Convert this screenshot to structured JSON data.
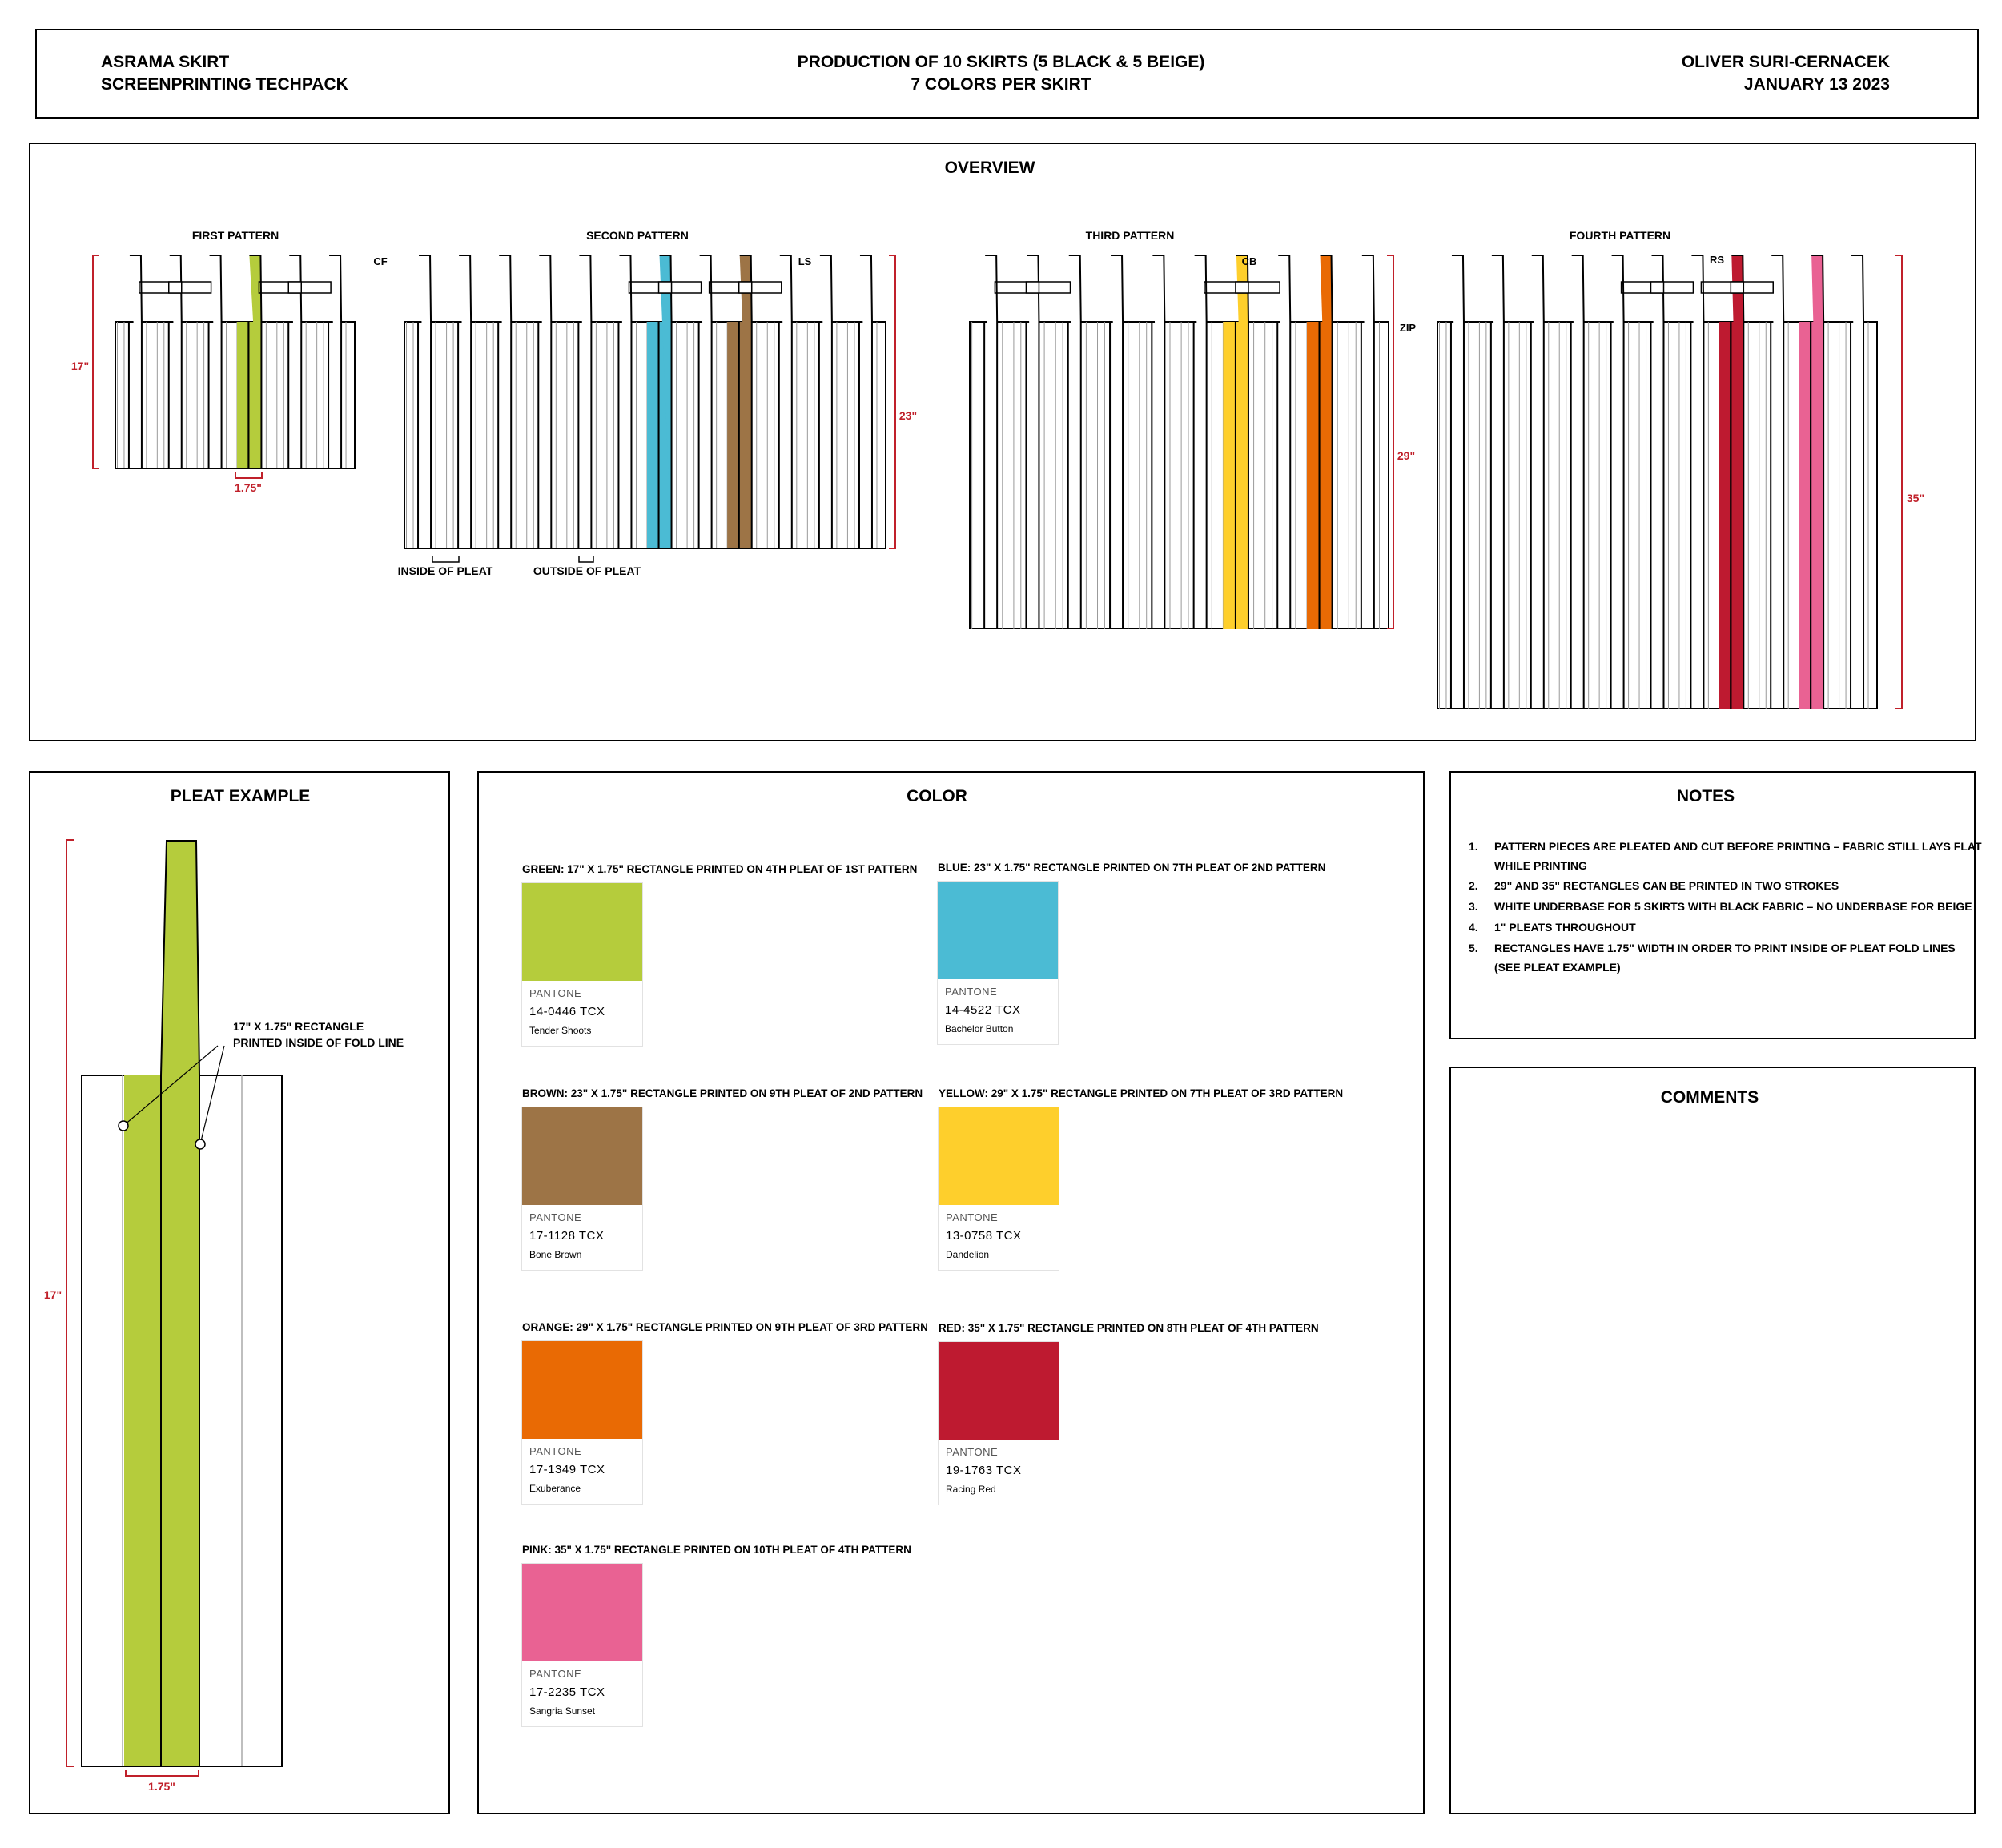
{
  "header": {
    "left_line1": "ASRAMA SKIRT",
    "left_line2": "SCREENPRINTING TECHPACK",
    "center_line1": "PRODUCTION OF 10 SKIRTS (5 BLACK & 5 BEIGE)",
    "center_line2": "7 COLORS PER SKIRT",
    "right_line1": "OLIVER SURI-CERNACEK",
    "right_line2": "JANUARY 13 2023"
  },
  "overview": {
    "title": "OVERVIEW",
    "patterns": [
      {
        "name": "FIRST PATTERN",
        "height": "17\"",
        "width_label": "1.75\""
      },
      {
        "name": "SECOND PATTERN",
        "height": "23\"",
        "mark_left": "CF",
        "mark_right": "LS"
      },
      {
        "name": "THIRD PATTERN",
        "height": "29\"",
        "mark_top": "CB",
        "mark_right": "ZIP"
      },
      {
        "name": "FOURTH PATTERN",
        "height": "35\"",
        "mark_top": "RS"
      }
    ],
    "inside_pleat": "INSIDE OF PLEAT",
    "outside_pleat": "OUTSIDE OF PLEAT"
  },
  "pleat_example": {
    "title": "PLEAT EXAMPLE",
    "height": "17\"",
    "width": "1.75\"",
    "callout_line1": "17\" X 1.75\" RECTANGLE",
    "callout_line2": "PRINTED INSIDE OF FOLD LINE"
  },
  "color": {
    "title": "COLOR",
    "swatches": [
      {
        "desc": "GREEN: 17\" X 1.75\" RECTANGLE PRINTED ON 4TH PLEAT OF 1ST PATTERN",
        "brand": "PANTONE",
        "code": "14-0446 TCX",
        "name": "Tender Shoots",
        "hex": "#b5cc3c"
      },
      {
        "desc": "BLUE: 23\" X 1.75\" RECTANGLE PRINTED ON 7TH PLEAT OF 2ND PATTERN",
        "brand": "PANTONE",
        "code": "14-4522 TCX",
        "name": "Bachelor Button",
        "hex": "#4bbbd4"
      },
      {
        "desc": "BROWN: 23\" X 1.75\" RECTANGLE PRINTED ON 9TH PLEAT OF 2ND PATTERN",
        "brand": "PANTONE",
        "code": "17-1128 TCX",
        "name": "Bone Brown",
        "hex": "#9d7446"
      },
      {
        "desc": "YELLOW: 29\" x 1.75\" RECTANGLE PRINTED ON 7TH PLEAT OF 3RD PATTERN",
        "brand": "PANTONE",
        "code": "13-0758 TCX",
        "name": "Dandelion",
        "hex": "#fecf2c"
      },
      {
        "desc": "ORANGE: 29\" X 1.75\" RECTANGLE PRINTED ON 9TH PLEAT OF 3RD PATTERN",
        "brand": "PANTONE",
        "code": "17-1349 TCX",
        "name": "Exuberance",
        "hex": "#e96a04"
      },
      {
        "desc": "RED: 35\" X 1.75\" RECTANGLE PRINTED ON 8TH PLEAT OF 4TH PATTERN",
        "brand": "PANTONE",
        "code": "19-1763 TCX",
        "name": "Racing Red",
        "hex": "#be1a30"
      },
      {
        "desc": "PINK: 35\" X 1.75\" RECTANGLE PRINTED ON 10TH PLEAT OF 4TH PATTERN",
        "brand": "PANTONE",
        "code": "17-2235 TCX",
        "name": "Sangria Sunset",
        "hex": "#e96293"
      }
    ]
  },
  "notes": {
    "title": "NOTES",
    "items": [
      {
        "num": "1.",
        "line1": "PATTERN PIECES ARE PLEATED AND CUT BEFORE PRINTING – FABRIC STILL LAYS FLAT",
        "line2": "WHILE PRINTING"
      },
      {
        "num": "2.",
        "line1": "29\" AND 35\" RECTANGLES CAN BE PRINTED IN TWO STROKES",
        "line2": ""
      },
      {
        "num": "3.",
        "line1": "WHITE UNDERBASE FOR 5 SKIRTS WITH BLACK FABRIC – NO UNDERBASE FOR BEIGE",
        "line2": ""
      },
      {
        "num": "4.",
        "line1": "1\" PLEATS THROUGHOUT",
        "line2": ""
      },
      {
        "num": "5.",
        "line1": "RECTANGLES HAVE 1.75\" WIDTH IN ORDER TO PRINT INSIDE OF PLEAT FOLD LINES",
        "line2": "(SEE PLEAT EXAMPLE)"
      }
    ]
  },
  "comments": {
    "title": "COMMENTS"
  }
}
